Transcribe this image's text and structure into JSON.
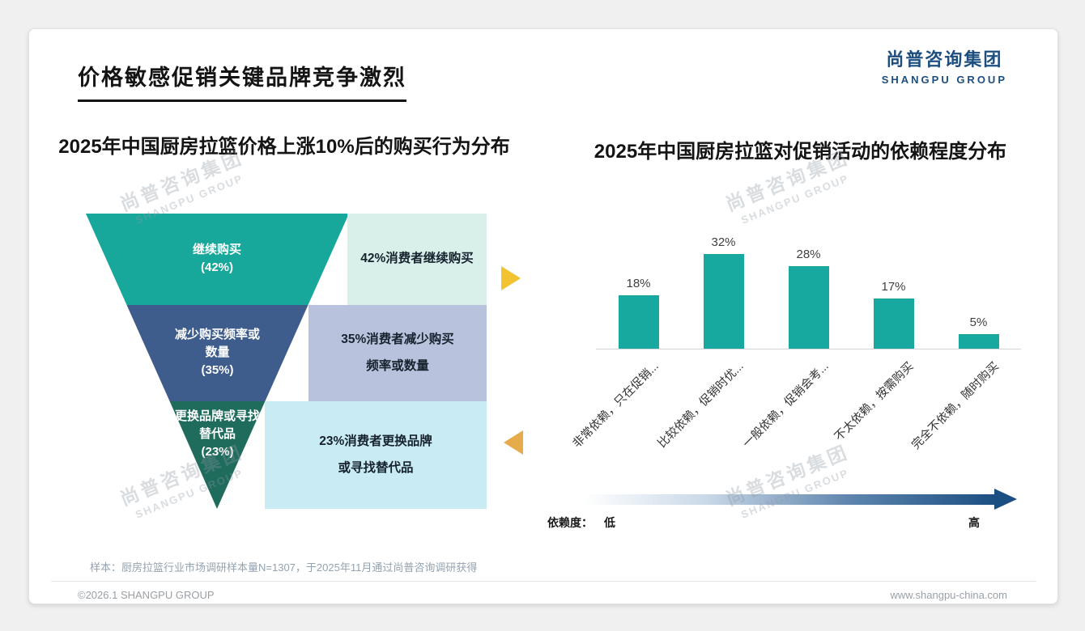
{
  "header": {
    "title": "价格敏感促销关键品牌竞争激烈",
    "logo_cn": "尚普咨询集团",
    "logo_en": "SHANGPU GROUP"
  },
  "watermark": {
    "line1": "尚普咨询集团",
    "line2": "SHANGPU GROUP"
  },
  "colors": {
    "logo_blue": "#1d4e7e",
    "arrow_gold": "#f2c230",
    "arrow_amber": "#e6ac4b",
    "gradient_dark": "#1b4f82",
    "bar_teal": "#17a8a0"
  },
  "chart_data": [
    {
      "type": "funnel",
      "title": "2025年中国厨房拉篮价格上涨10%后的购买行为分布",
      "segments": [
        {
          "label": "继续购买",
          "pct": "(42%)",
          "value": 42,
          "color": "#18a79b",
          "note": "42%消费者继续购买",
          "note_bg": "#d8efea"
        },
        {
          "label": "减少购买频率或数量",
          "pct": "(35%)",
          "value": 35,
          "color": "#3e5c8c",
          "note": "35%消费者减少购买频率或数量",
          "note_bg": "#b9c2dc"
        },
        {
          "label": "更换品牌或寻找替代品",
          "pct": "(23%)",
          "value": 23,
          "color": "#1f6b5c",
          "note": "23%消费者更换品牌或寻找替代品",
          "note_bg": "#c9ebf3"
        }
      ]
    },
    {
      "type": "bar",
      "title": "2025年中国厨房拉篮对促销活动的依赖程度分布",
      "categories": [
        "非常依赖，只在促销...",
        "比较依赖，促销时优...",
        "一般依赖，促销会考...",
        "不太依赖，按需购买",
        "完全不依赖，随时购买"
      ],
      "values": [
        18,
        32,
        28,
        17,
        5
      ],
      "value_labels": [
        "18%",
        "32%",
        "28%",
        "17%",
        "5%"
      ],
      "ylim": [
        0,
        35
      ],
      "grid": false,
      "legend": "none",
      "bar_color": "#17a8a0",
      "axis_note": {
        "label": "依赖度：",
        "low": "低",
        "high": "高"
      }
    }
  ],
  "footer": {
    "sample_note": "样本：厨房拉篮行业市场调研样本量N=1307，于2025年11月通过尚普咨询调研获得",
    "copyright": "©2026.1 SHANGPU GROUP",
    "website": "www.shangpu-china.com"
  }
}
